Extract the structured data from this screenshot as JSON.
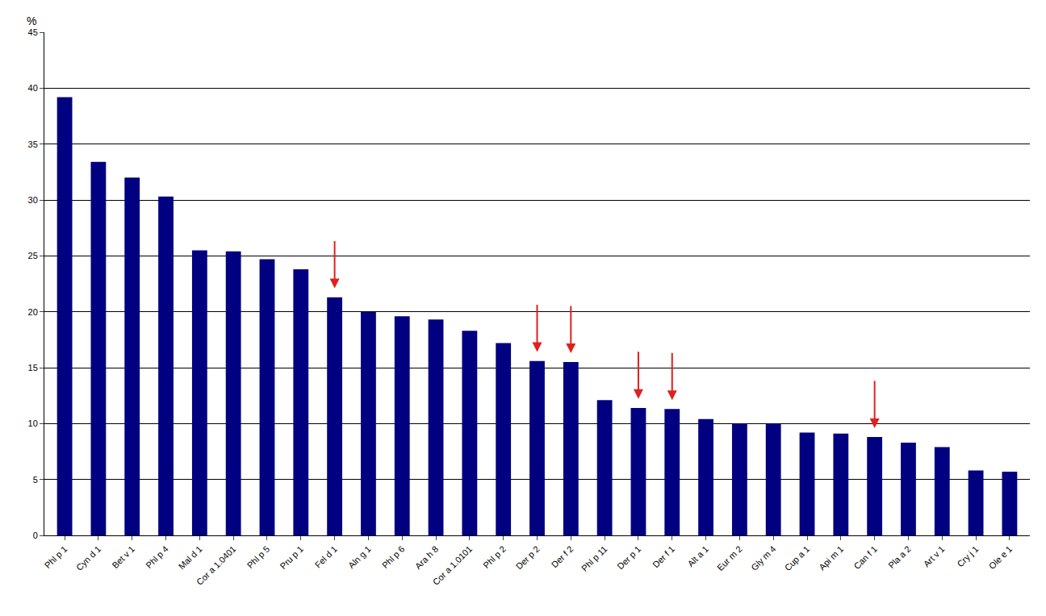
{
  "chart_data": {
    "type": "bar",
    "y_label": "%",
    "categories": [
      "Phl p 1",
      "Cyn d 1",
      "Bet v 1",
      "Phl p 4",
      "Mal d 1",
      "Cor a 1.0401",
      "Phl p 5",
      "Pru p 1",
      "Fel d 1",
      "Aln g 1",
      "Phl p 6",
      "Ara h 8",
      "Cor a 1.0101",
      "Phl p 2",
      "Der p 2",
      "Der f 2",
      "Phl p 11",
      "Der p 1",
      "Der f 1",
      "Alt a 1",
      "Eur m 2",
      "Gly m 4",
      "Cup a 1",
      "Api m 1",
      "Can f 1",
      "Pla a 2",
      "Art v 1",
      "Cry j 1",
      "Ole e 1"
    ],
    "values": [
      39.2,
      33.4,
      32,
      30.3,
      25.5,
      25.4,
      24.7,
      23.8,
      21.3,
      20,
      19.6,
      19.3,
      18.3,
      17.2,
      15.6,
      15.5,
      12.1,
      11.4,
      11.3,
      10.4,
      10,
      10,
      9.2,
      9.1,
      8.8,
      8.3,
      7.9,
      5.8,
      5.7
    ],
    "color": "#000080",
    "ylim": [
      0,
      45
    ],
    "yticks": [
      0,
      5,
      10,
      15,
      20,
      25,
      30,
      35,
      40,
      45
    ],
    "grid": true
  }
}
